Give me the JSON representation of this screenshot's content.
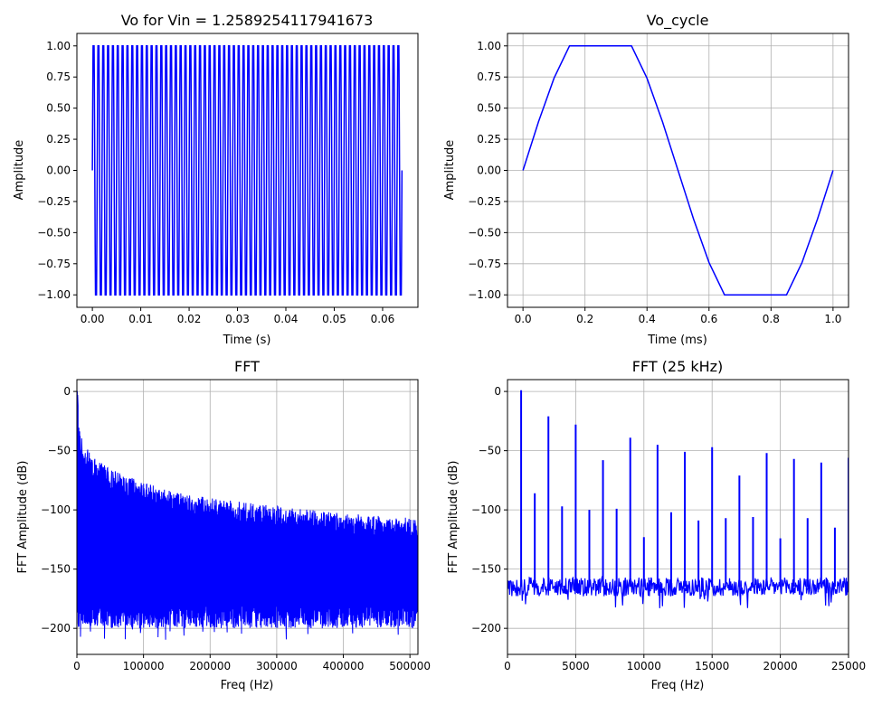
{
  "colors": {
    "line": "#0000ff",
    "grid": "#b0b0b0",
    "axis": "#000000"
  },
  "chart_data": [
    {
      "id": "p1",
      "type": "line",
      "title": "Vo for Vin = 1.2589254117941673",
      "xlabel": "Time (s)",
      "ylabel": "Amplitude",
      "grid": false,
      "xlim": [
        -0.0032,
        0.0673
      ],
      "ylim": [
        -1.1,
        1.1
      ],
      "xticks": [
        0.0,
        0.01,
        0.02,
        0.03,
        0.04,
        0.05,
        0.06
      ],
      "xtick_labels": [
        "0.00",
        "0.01",
        "0.02",
        "0.03",
        "0.04",
        "0.05",
        "0.06"
      ],
      "yticks": [
        -1.0,
        -0.75,
        -0.5,
        -0.25,
        0.0,
        0.25,
        0.5,
        0.75,
        1.0
      ],
      "ytick_labels": [
        "−1.00",
        "−0.75",
        "−0.50",
        "−0.25",
        "0.00",
        "0.25",
        "0.50",
        "0.75",
        "1.00"
      ],
      "series": [
        {
          "kind": "clipped_sine",
          "frequency_hz": 1000,
          "amplitude": 1.2589254117941673,
          "clip": 1.0,
          "x_start": 0.0,
          "x_end": 0.064
        }
      ]
    },
    {
      "id": "p2",
      "type": "line",
      "title": "Vo_cycle",
      "xlabel": "Time (ms)",
      "ylabel": "Amplitude",
      "grid": true,
      "xlim": [
        -0.05,
        1.05
      ],
      "ylim": [
        -1.1,
        1.1
      ],
      "xticks": [
        0.0,
        0.2,
        0.4,
        0.6,
        0.8,
        1.0
      ],
      "xtick_labels": [
        "0.0",
        "0.2",
        "0.4",
        "0.6",
        "0.8",
        "1.0"
      ],
      "yticks": [
        -1.0,
        -0.75,
        -0.5,
        -0.25,
        0.0,
        0.25,
        0.5,
        0.75,
        1.0
      ],
      "ytick_labels": [
        "−1.00",
        "−0.75",
        "−0.50",
        "−0.25",
        "0.00",
        "0.25",
        "0.50",
        "0.75",
        "1.00"
      ],
      "series": [
        {
          "x": [
            0.0,
            0.05,
            0.1,
            0.15,
            0.35,
            0.4,
            0.45,
            0.5,
            0.55,
            0.6,
            0.65,
            0.85,
            0.9,
            0.95,
            1.0
          ],
          "y": [
            0.0,
            0.39,
            0.74,
            1.0,
            1.0,
            0.74,
            0.39,
            0.0,
            -0.39,
            -0.74,
            -1.0,
            -1.0,
            -0.74,
            -0.39,
            0.0
          ]
        }
      ]
    },
    {
      "id": "p3",
      "type": "line",
      "title": "FFT",
      "xlabel": "Freq (Hz)",
      "ylabel": "FFT Amplitude (dB)",
      "grid": true,
      "xlim": [
        0,
        512000
      ],
      "ylim": [
        -222,
        10
      ],
      "xticks": [
        0,
        100000,
        200000,
        300000,
        400000,
        500000
      ],
      "xtick_labels": [
        "0",
        "100000",
        "200000",
        "300000",
        "400000",
        "500000"
      ],
      "yticks": [
        -200,
        -150,
        -100,
        -50,
        0
      ],
      "ytick_labels": [
        "−200",
        "−150",
        "−100",
        "−50",
        "0"
      ],
      "series": [
        {
          "kind": "dense_fft_band",
          "bin_spacing_hz": 1000,
          "top_envelope": {
            "x": [
              1000,
              3000,
              10000,
              30000,
              60000,
              100000,
              150000,
              200000,
              300000,
              400000,
              512000
            ],
            "y": [
              0,
              -30,
              -45,
              -58,
              -68,
              -77,
              -85,
              -90,
              -97,
              -103,
              -107
            ]
          },
          "floor_db": [
            -200,
            -180
          ]
        }
      ]
    },
    {
      "id": "p4",
      "type": "line",
      "title": "FFT (25 kHz)",
      "xlabel": "Freq (Hz)",
      "ylabel": "FFT Amplitude (dB)",
      "grid": true,
      "xlim": [
        0,
        25000
      ],
      "ylim": [
        -222,
        10
      ],
      "xticks": [
        0,
        5000,
        10000,
        15000,
        20000,
        25000
      ],
      "xtick_labels": [
        "0",
        "5000",
        "10000",
        "15000",
        "20000",
        "25000"
      ],
      "yticks": [
        -200,
        -150,
        -100,
        -50,
        0
      ],
      "ytick_labels": [
        "−200",
        "−150",
        "−100",
        "−50",
        "0"
      ],
      "noise_floor_db": [
        -173,
        -157
      ],
      "peaks": {
        "x": [
          1000,
          2000,
          3000,
          4000,
          5000,
          6000,
          7000,
          8000,
          9000,
          10000,
          11000,
          12000,
          13000,
          14000,
          15000,
          16000,
          17000,
          18000,
          19000,
          20000,
          21000,
          22000,
          23000,
          24000,
          25000
        ],
        "y": [
          1,
          -86,
          -21,
          -97,
          -28,
          -100,
          -58,
          -99,
          -39,
          -123,
          -45,
          -102,
          -51,
          -109,
          -47,
          -107,
          -71,
          -106,
          -52,
          -124,
          -57,
          -107,
          -60,
          -115,
          -56
        ]
      }
    }
  ]
}
